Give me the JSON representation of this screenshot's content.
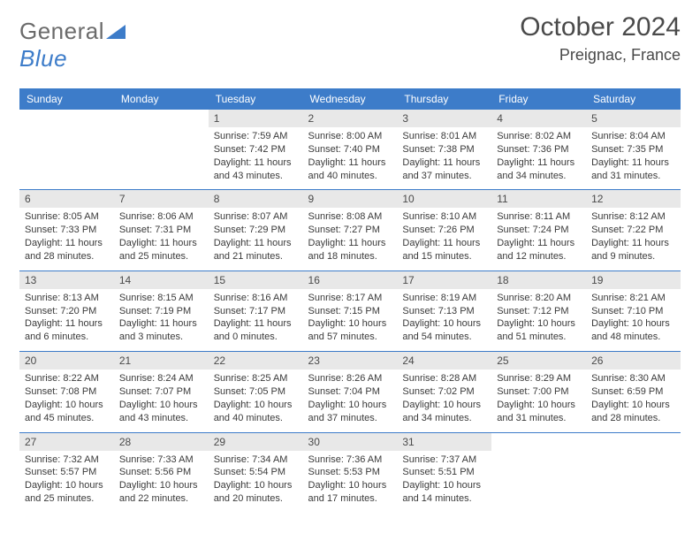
{
  "logo": {
    "word1": "General",
    "word2": "Blue"
  },
  "title": "October 2024",
  "location": "Preignac, France",
  "day_labels": [
    "Sunday",
    "Monday",
    "Tuesday",
    "Wednesday",
    "Thursday",
    "Friday",
    "Saturday"
  ],
  "colors": {
    "header_bg": "#3d7cc9",
    "header_text": "#ffffff",
    "daynum_bg": "#e8e8e8",
    "text": "#3a3a3a",
    "title_text": "#4a4a4a",
    "logo_gray": "#6b6b6b",
    "logo_blue": "#3d7cc9",
    "page_bg": "#ffffff"
  },
  "typography": {
    "title_fontsize": 30,
    "location_fontsize": 18,
    "daylabel_fontsize": 12,
    "daynum_fontsize": 12,
    "body_fontsize": 11
  },
  "weeks": [
    [
      null,
      null,
      {
        "n": "1",
        "sr": "7:59 AM",
        "ss": "7:42 PM",
        "dl": "11 hours and 43 minutes."
      },
      {
        "n": "2",
        "sr": "8:00 AM",
        "ss": "7:40 PM",
        "dl": "11 hours and 40 minutes."
      },
      {
        "n": "3",
        "sr": "8:01 AM",
        "ss": "7:38 PM",
        "dl": "11 hours and 37 minutes."
      },
      {
        "n": "4",
        "sr": "8:02 AM",
        "ss": "7:36 PM",
        "dl": "11 hours and 34 minutes."
      },
      {
        "n": "5",
        "sr": "8:04 AM",
        "ss": "7:35 PM",
        "dl": "11 hours and 31 minutes."
      }
    ],
    [
      {
        "n": "6",
        "sr": "8:05 AM",
        "ss": "7:33 PM",
        "dl": "11 hours and 28 minutes."
      },
      {
        "n": "7",
        "sr": "8:06 AM",
        "ss": "7:31 PM",
        "dl": "11 hours and 25 minutes."
      },
      {
        "n": "8",
        "sr": "8:07 AM",
        "ss": "7:29 PM",
        "dl": "11 hours and 21 minutes."
      },
      {
        "n": "9",
        "sr": "8:08 AM",
        "ss": "7:27 PM",
        "dl": "11 hours and 18 minutes."
      },
      {
        "n": "10",
        "sr": "8:10 AM",
        "ss": "7:26 PM",
        "dl": "11 hours and 15 minutes."
      },
      {
        "n": "11",
        "sr": "8:11 AM",
        "ss": "7:24 PM",
        "dl": "11 hours and 12 minutes."
      },
      {
        "n": "12",
        "sr": "8:12 AM",
        "ss": "7:22 PM",
        "dl": "11 hours and 9 minutes."
      }
    ],
    [
      {
        "n": "13",
        "sr": "8:13 AM",
        "ss": "7:20 PM",
        "dl": "11 hours and 6 minutes."
      },
      {
        "n": "14",
        "sr": "8:15 AM",
        "ss": "7:19 PM",
        "dl": "11 hours and 3 minutes."
      },
      {
        "n": "15",
        "sr": "8:16 AM",
        "ss": "7:17 PM",
        "dl": "11 hours and 0 minutes."
      },
      {
        "n": "16",
        "sr": "8:17 AM",
        "ss": "7:15 PM",
        "dl": "10 hours and 57 minutes."
      },
      {
        "n": "17",
        "sr": "8:19 AM",
        "ss": "7:13 PM",
        "dl": "10 hours and 54 minutes."
      },
      {
        "n": "18",
        "sr": "8:20 AM",
        "ss": "7:12 PM",
        "dl": "10 hours and 51 minutes."
      },
      {
        "n": "19",
        "sr": "8:21 AM",
        "ss": "7:10 PM",
        "dl": "10 hours and 48 minutes."
      }
    ],
    [
      {
        "n": "20",
        "sr": "8:22 AM",
        "ss": "7:08 PM",
        "dl": "10 hours and 45 minutes."
      },
      {
        "n": "21",
        "sr": "8:24 AM",
        "ss": "7:07 PM",
        "dl": "10 hours and 43 minutes."
      },
      {
        "n": "22",
        "sr": "8:25 AM",
        "ss": "7:05 PM",
        "dl": "10 hours and 40 minutes."
      },
      {
        "n": "23",
        "sr": "8:26 AM",
        "ss": "7:04 PM",
        "dl": "10 hours and 37 minutes."
      },
      {
        "n": "24",
        "sr": "8:28 AM",
        "ss": "7:02 PM",
        "dl": "10 hours and 34 minutes."
      },
      {
        "n": "25",
        "sr": "8:29 AM",
        "ss": "7:00 PM",
        "dl": "10 hours and 31 minutes."
      },
      {
        "n": "26",
        "sr": "8:30 AM",
        "ss": "6:59 PM",
        "dl": "10 hours and 28 minutes."
      }
    ],
    [
      {
        "n": "27",
        "sr": "7:32 AM",
        "ss": "5:57 PM",
        "dl": "10 hours and 25 minutes."
      },
      {
        "n": "28",
        "sr": "7:33 AM",
        "ss": "5:56 PM",
        "dl": "10 hours and 22 minutes."
      },
      {
        "n": "29",
        "sr": "7:34 AM",
        "ss": "5:54 PM",
        "dl": "10 hours and 20 minutes."
      },
      {
        "n": "30",
        "sr": "7:36 AM",
        "ss": "5:53 PM",
        "dl": "10 hours and 17 minutes."
      },
      {
        "n": "31",
        "sr": "7:37 AM",
        "ss": "5:51 PM",
        "dl": "10 hours and 14 minutes."
      },
      null,
      null
    ]
  ],
  "labels": {
    "sunrise": "Sunrise:",
    "sunset": "Sunset:",
    "daylight": "Daylight:"
  }
}
